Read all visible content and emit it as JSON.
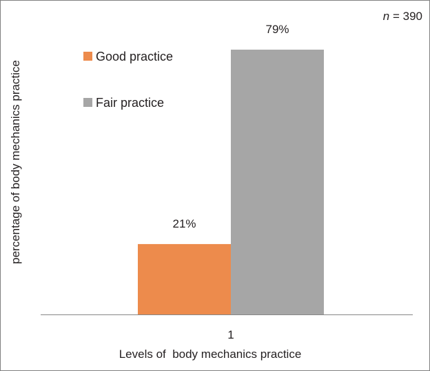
{
  "chart_data": {
    "type": "bar",
    "categories": [
      "1"
    ],
    "series": [
      {
        "name": "Good practice",
        "values": [
          21
        ],
        "color": "#ed8b4c"
      },
      {
        "name": "Fair practice",
        "values": [
          79
        ],
        "color": "#a6a6a6"
      }
    ],
    "data_labels": [
      "21%",
      "79%"
    ],
    "sample_size_label": "n",
    "sample_size_text": " = 390",
    "xlabel": "Levels of  body mechanics practice",
    "ylabel": "percentage of body mechanics practice",
    "ylim": [
      0,
      79
    ],
    "legend_position": "top-left",
    "grid": false,
    "axis_color": "#868686"
  }
}
